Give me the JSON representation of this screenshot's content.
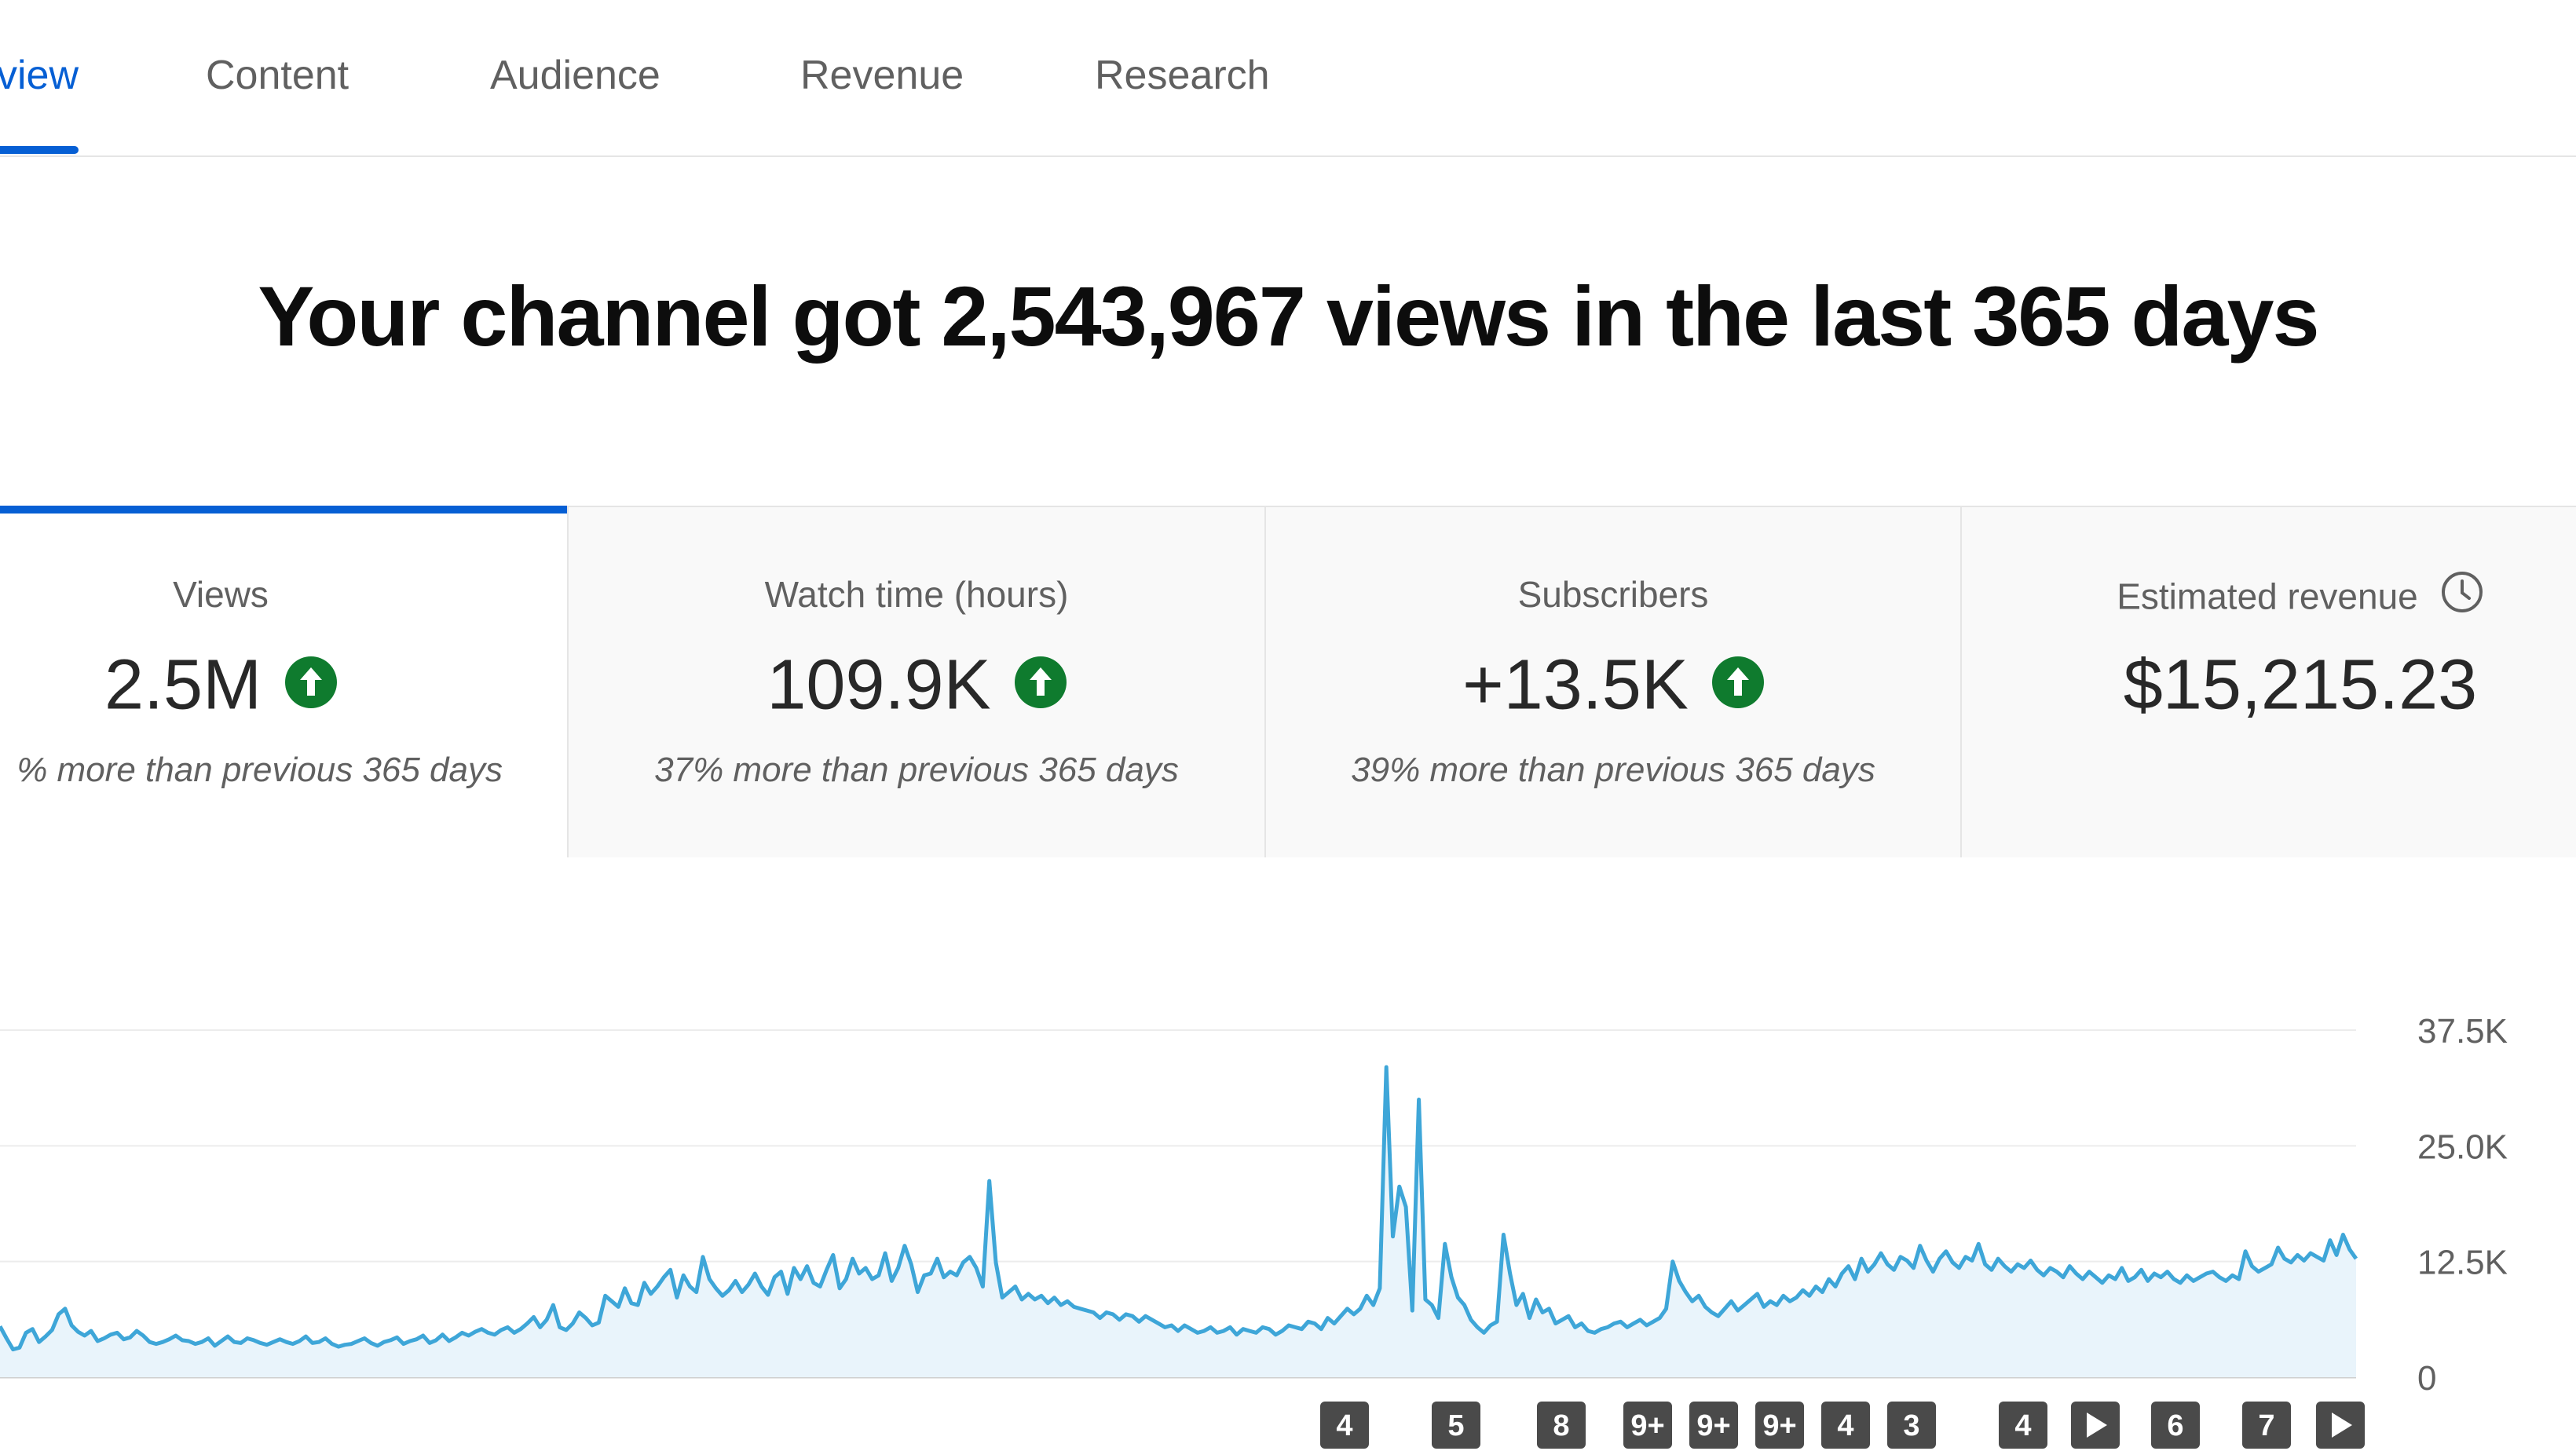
{
  "tabs": [
    {
      "label": "view",
      "active": true
    },
    {
      "label": "Content",
      "active": false
    },
    {
      "label": "Audience",
      "active": false
    },
    {
      "label": "Revenue",
      "active": false
    },
    {
      "label": "Research",
      "active": false
    }
  ],
  "headline": "Your channel got 2,543,967 views in the last 365 days",
  "cards": [
    {
      "label": "Views",
      "value": "2.5M",
      "trend": "up",
      "note": "% more than previous 365 days",
      "active": true
    },
    {
      "label": "Watch time (hours)",
      "value": "109.9K",
      "trend": "up",
      "note": "37% more than previous 365 days",
      "active": false
    },
    {
      "label": "Subscribers",
      "value": "+13.5K",
      "trend": "up",
      "note": "39% more than previous 365 days",
      "active": false
    },
    {
      "label": "Estimated revenue",
      "value": "$15,215.23",
      "trend": "none",
      "note": "",
      "icon": "clock-icon",
      "active": false
    }
  ],
  "colors": {
    "accent": "#065fd4",
    "trend_up": "#0f7b2e",
    "line": "#3ea6d8",
    "area": "#e9f4fb",
    "badge": "#4a4a4a"
  },
  "chart_data": {
    "type": "area",
    "title": "",
    "xlabel": "",
    "ylabel": "",
    "ylim": [
      0,
      37500
    ],
    "y_ticks": [
      "0",
      "12.5K",
      "25.0K",
      "37.5K"
    ],
    "grid": true,
    "series": [
      {
        "values": [
          5500,
          4200,
          3000,
          3200,
          4800,
          5200,
          3800,
          4400,
          5100,
          6800,
          7400,
          5600,
          4900,
          4500,
          5000,
          3900,
          4200,
          4600,
          4800,
          4100,
          4300,
          5000,
          4500,
          3800,
          3600,
          3800,
          4100,
          4500,
          4000,
          3900,
          3600,
          3800,
          4200,
          3400,
          3900,
          4400,
          3800,
          3700,
          4200,
          4000,
          3700,
          3500,
          3800,
          4100,
          3800,
          3600,
          3900,
          4400,
          3700,
          3800,
          4200,
          3600,
          3300,
          3500,
          3600,
          3900,
          4200,
          3700,
          3400,
          3800,
          4000,
          4300,
          3600,
          3900,
          4100,
          4500,
          3700,
          4000,
          4600,
          3900,
          4300,
          4800,
          4500,
          4900,
          5200,
          4800,
          4600,
          5100,
          5400,
          4800,
          5200,
          5800,
          6500,
          5400,
          6200,
          7800,
          5400,
          5100,
          5800,
          7000,
          6400,
          5600,
          5900,
          8800,
          8200,
          7600,
          9600,
          8000,
          7800,
          10200,
          9000,
          9800,
          10800,
          11600,
          8600,
          11000,
          9800,
          9200,
          13000,
          10600,
          9600,
          8800,
          9400,
          10400,
          9200,
          10000,
          11200,
          9800,
          8900,
          10800,
          11400,
          9000,
          11800,
          10600,
          12000,
          10200,
          9800,
          11600,
          13200,
          9600,
          10600,
          12800,
          11200,
          11800,
          10600,
          11000,
          13400,
          10400,
          11800,
          14200,
          12200,
          9200,
          11000,
          11200,
          12800,
          10800,
          11400,
          11000,
          12400,
          13000,
          11800,
          9800,
          21200,
          12400,
          8600,
          9200,
          9800,
          8400,
          9000,
          8400,
          8800,
          8000,
          8600,
          7800,
          8200,
          7600,
          7400,
          7200,
          7000,
          6400,
          7000,
          6800,
          6200,
          6800,
          6600,
          6000,
          6600,
          6200,
          5800,
          5400,
          5600,
          5000,
          5600,
          5200,
          4800,
          5000,
          5400,
          4800,
          5000,
          5400,
          4600,
          5200,
          5000,
          4800,
          5400,
          5200,
          4600,
          5000,
          5600,
          5400,
          5200,
          6000,
          5800,
          5200,
          6400,
          5800,
          6600,
          7400,
          6800,
          7400,
          8800,
          7800,
          9600,
          33500,
          15200,
          20600,
          18400,
          7200,
          30000,
          8400,
          7800,
          6400,
          14400,
          10800,
          8600,
          7800,
          6200,
          5400,
          4800,
          5600,
          6000,
          15400,
          11200,
          7800,
          9000,
          6400,
          8400,
          7000,
          7400,
          5800,
          6200,
          6600,
          5400,
          5800,
          5000,
          4800,
          5200,
          5400,
          5800,
          6000,
          5400,
          5800,
          6200,
          5600,
          6000,
          6400,
          7400,
          12500,
          10400,
          9200,
          8200,
          8800,
          7600,
          7000,
          6600,
          7400,
          8200,
          7200,
          7800,
          8400,
          9000,
          7600,
          8200,
          7800,
          8800,
          8200,
          8600,
          9400,
          8800,
          9800,
          9200,
          10600,
          9800,
          11200,
          12000,
          10600,
          12800,
          11400,
          12200,
          13400,
          12200,
          11600,
          13000,
          12600,
          11800,
          14200,
          12600,
          11400,
          12800,
          13600,
          12400,
          11800,
          13000,
          12600,
          14400,
          12200,
          11600,
          12800,
          12000,
          11400,
          12200,
          11800,
          12600,
          11600,
          11000,
          11800,
          11400,
          10800,
          12000,
          11200,
          10600,
          11400,
          10800,
          10200,
          11000,
          10600,
          11800,
          10400,
          10800,
          11600,
          10400,
          11200,
          10800,
          11400,
          10600,
          10200,
          11000,
          10400,
          10800,
          11200,
          11400,
          10800,
          10400,
          11000,
          10600,
          13600,
          12000,
          11400,
          11800,
          12200,
          14000,
          12800,
          12400,
          13200,
          12600,
          13400,
          13000,
          12600,
          14800,
          13200,
          15400,
          13800,
          12800
        ],
        "color": "#3ea6d8"
      }
    ],
    "annotation_badges": [
      "4",
      "5",
      "8",
      "9+",
      "9+",
      "9+",
      "4",
      "3",
      "4",
      "play",
      "6",
      "7",
      "play"
    ]
  }
}
